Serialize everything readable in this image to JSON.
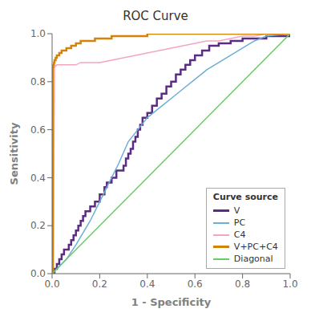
{
  "chart_data": {
    "type": "line",
    "title": "ROC Curve",
    "xlabel": "1 - Specificity",
    "ylabel": "Sensitivity",
    "xlim": [
      0.0,
      1.0
    ],
    "ylim": [
      0.0,
      1.0
    ],
    "xticks": [
      {
        "value": 0,
        "label": "0.0"
      },
      0.2,
      0.4,
      0.6,
      0.8,
      {
        "value": 1,
        "label": "1.0"
      }
    ],
    "yticks": [
      {
        "value": 0,
        "label": "0.0"
      },
      0.2,
      0.4,
      0.6,
      0.8,
      {
        "value": 1,
        "label": "1.0"
      }
    ],
    "grid": false,
    "legend": "lower right",
    "legend_title": "Curve source",
    "series": [
      {
        "name": "V",
        "color": "#5B2D82",
        "line_style": "step",
        "x": [
          0.0,
          0.01,
          0.01,
          0.02,
          0.02,
          0.03,
          0.03,
          0.04,
          0.04,
          0.05,
          0.05,
          0.06,
          0.07,
          0.07,
          0.08,
          0.08,
          0.09,
          0.09,
          0.1,
          0.1,
          0.11,
          0.11,
          0.12,
          0.12,
          0.13,
          0.13,
          0.14,
          0.14,
          0.15,
          0.16,
          0.16,
          0.17,
          0.18,
          0.18,
          0.19,
          0.2,
          0.2,
          0.21,
          0.22,
          0.22,
          0.23,
          0.23,
          0.24,
          0.25,
          0.25,
          0.26,
          0.27,
          0.27,
          0.28,
          0.29,
          0.3,
          0.31,
          0.32,
          0.33,
          0.34,
          0.35,
          0.36,
          0.37,
          0.38,
          0.4,
          0.42,
          0.44,
          0.46,
          0.48,
          0.5,
          0.52,
          0.54,
          0.56,
          0.58,
          0.6,
          0.63,
          0.66,
          0.7,
          0.75,
          0.8,
          0.9,
          1.0
        ],
        "values": [
          0.0,
          0.0,
          0.02,
          0.02,
          0.04,
          0.04,
          0.06,
          0.06,
          0.08,
          0.08,
          0.1,
          0.1,
          0.1,
          0.12,
          0.12,
          0.14,
          0.14,
          0.16,
          0.16,
          0.18,
          0.18,
          0.2,
          0.2,
          0.22,
          0.22,
          0.24,
          0.24,
          0.26,
          0.26,
          0.26,
          0.28,
          0.28,
          0.28,
          0.3,
          0.3,
          0.3,
          0.33,
          0.33,
          0.33,
          0.36,
          0.36,
          0.38,
          0.38,
          0.38,
          0.4,
          0.4,
          0.4,
          0.43,
          0.43,
          0.43,
          0.45,
          0.48,
          0.5,
          0.52,
          0.55,
          0.57,
          0.6,
          0.62,
          0.65,
          0.67,
          0.7,
          0.73,
          0.75,
          0.78,
          0.8,
          0.83,
          0.85,
          0.87,
          0.89,
          0.91,
          0.93,
          0.95,
          0.96,
          0.97,
          0.98,
          0.99,
          1.0
        ]
      },
      {
        "name": "PC",
        "color": "#6BAED6",
        "line_style": "solid",
        "x": [
          0.0,
          0.01,
          0.02,
          0.04,
          0.06,
          0.08,
          0.1,
          0.13,
          0.16,
          0.2,
          0.24,
          0.28,
          0.32,
          0.36,
          0.4,
          0.45,
          0.5,
          0.55,
          0.6,
          0.65,
          0.7,
          0.75,
          0.8,
          0.85,
          0.9,
          1.0
        ],
        "values": [
          0.0,
          0.01,
          0.02,
          0.04,
          0.06,
          0.09,
          0.12,
          0.17,
          0.22,
          0.3,
          0.38,
          0.46,
          0.55,
          0.6,
          0.65,
          0.69,
          0.73,
          0.77,
          0.81,
          0.85,
          0.88,
          0.91,
          0.94,
          0.97,
          0.99,
          1.0
        ]
      },
      {
        "name": "C4",
        "color": "#F4A6C0",
        "line_style": "solid",
        "x": [
          0.0,
          0.005,
          0.01,
          0.02,
          0.04,
          0.06,
          0.08,
          0.1,
          0.12,
          0.15,
          0.18,
          0.2,
          0.25,
          0.3,
          0.35,
          0.4,
          0.45,
          0.5,
          0.55,
          0.6,
          0.65,
          0.7,
          0.75,
          0.8,
          0.85,
          0.9,
          1.0
        ],
        "values": [
          0.0,
          0.0,
          0.86,
          0.87,
          0.87,
          0.87,
          0.87,
          0.87,
          0.88,
          0.88,
          0.88,
          0.88,
          0.89,
          0.9,
          0.91,
          0.92,
          0.93,
          0.94,
          0.95,
          0.96,
          0.97,
          0.97,
          0.98,
          0.99,
          0.99,
          1.0,
          1.0
        ]
      },
      {
        "name": "V+PC+C4",
        "color": "#D4820A",
        "line_style": "step",
        "x": [
          0.0,
          0.003,
          0.003,
          0.005,
          0.008,
          0.01,
          0.015,
          0.02,
          0.03,
          0.04,
          0.05,
          0.06,
          0.07,
          0.08,
          0.09,
          0.1,
          0.12,
          0.15,
          0.18,
          0.2,
          0.25,
          0.3,
          0.4,
          0.5,
          0.6,
          0.7,
          0.8,
          0.9,
          1.0
        ],
        "values": [
          0.0,
          0.0,
          0.86,
          0.87,
          0.88,
          0.89,
          0.9,
          0.91,
          0.92,
          0.93,
          0.93,
          0.94,
          0.94,
          0.95,
          0.95,
          0.96,
          0.97,
          0.97,
          0.98,
          0.98,
          0.99,
          0.99,
          1.0,
          1.0,
          1.0,
          1.0,
          1.0,
          1.0,
          1.0
        ]
      },
      {
        "name": "Diagonal",
        "color": "#66CC66",
        "line_style": "solid",
        "x": [
          0,
          1
        ],
        "values": [
          0,
          1
        ]
      }
    ]
  }
}
